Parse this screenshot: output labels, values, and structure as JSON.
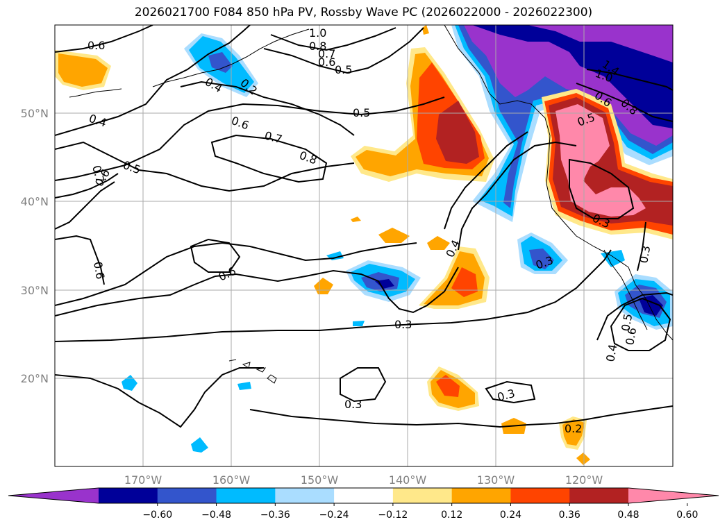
{
  "title": "2026021700 F084 850 hPa PV, Rossby Wave PC (2026022000 - 2026022300)",
  "map": {
    "lon_range": [
      -180,
      -110
    ],
    "lat_range": [
      10,
      60
    ],
    "lon_labels": [
      "170°W",
      "160°W",
      "150°W",
      "140°W",
      "130°W",
      "120°W"
    ],
    "lat_labels": [
      "50°N",
      "40°N",
      "30°N",
      "20°N"
    ],
    "contour_labels": [
      {
        "text": "0.6"
      },
      {
        "text": "0.4"
      },
      {
        "text": "0.2"
      },
      {
        "text": "1.0"
      },
      {
        "text": "0.8"
      },
      {
        "text": "0.7"
      },
      {
        "text": "0.6"
      },
      {
        "text": "0.5"
      },
      {
        "text": "0.5"
      },
      {
        "text": "0.6"
      },
      {
        "text": "0.7"
      },
      {
        "text": "0.8"
      },
      {
        "text": "0.4"
      },
      {
        "text": "0.5"
      },
      {
        "text": "0.7"
      },
      {
        "text": "0.6"
      },
      {
        "text": "0.6"
      },
      {
        "text": "0.6"
      },
      {
        "text": "0.4"
      },
      {
        "text": "0.3"
      },
      {
        "text": "0.3"
      },
      {
        "text": "0.3"
      },
      {
        "text": "0.2"
      },
      {
        "text": "0.3"
      },
      {
        "text": "0.3"
      },
      {
        "text": "0.5"
      },
      {
        "text": "1.4"
      },
      {
        "text": "1.0"
      },
      {
        "text": "0.6"
      },
      {
        "text": "0.8"
      },
      {
        "text": "0.3"
      },
      {
        "text": "0.4"
      },
      {
        "text": "0.6"
      },
      {
        "text": "0.5"
      }
    ]
  },
  "colorbar": {
    "colors": [
      "#9933cc",
      "#000099",
      "#3355cc",
      "#00bbff",
      "#aaddff",
      "#ffffff",
      "#ffe88a",
      "#ffa500",
      "#ff4400",
      "#b22222",
      "#ff88aa"
    ],
    "tick_labels": [
      "−0.60",
      "−0.48",
      "−0.36",
      "−0.24",
      "−0.12",
      "0.12",
      "0.24",
      "0.36",
      "0.48",
      "0.60"
    ]
  }
}
